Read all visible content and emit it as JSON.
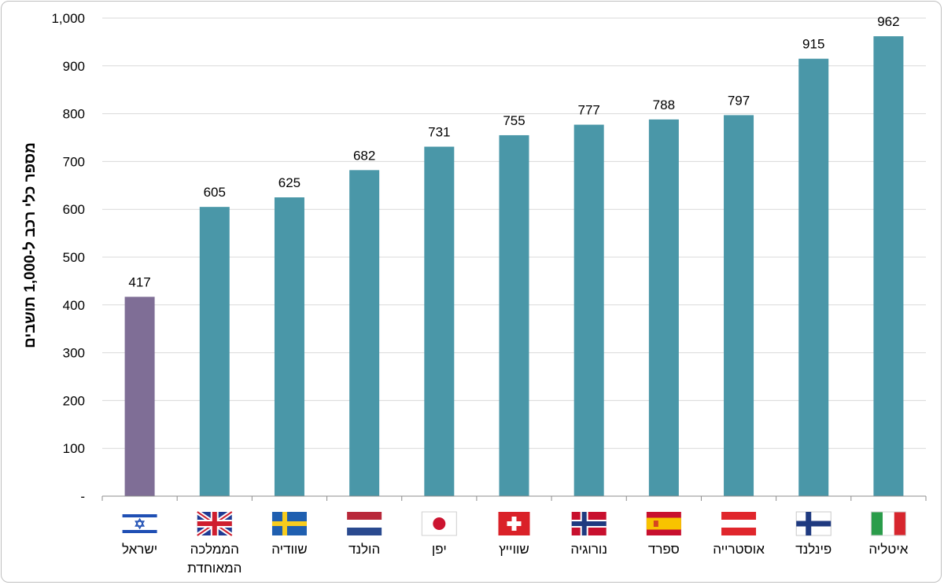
{
  "chart_data": {
    "type": "bar",
    "title": "",
    "ylabel": "מספר כלי רכב ל-1,000 תושבים",
    "xlabel": "",
    "ylim": [
      0,
      1000
    ],
    "yticks": [
      {
        "value": 0,
        "label": "-"
      },
      {
        "value": 100,
        "label": "100"
      },
      {
        "value": 200,
        "label": "200"
      },
      {
        "value": 300,
        "label": "300"
      },
      {
        "value": 400,
        "label": "400"
      },
      {
        "value": 500,
        "label": "500"
      },
      {
        "value": 600,
        "label": "600"
      },
      {
        "value": 700,
        "label": "700"
      },
      {
        "value": 800,
        "label": "800"
      },
      {
        "value": 900,
        "label": "900"
      },
      {
        "value": 1000,
        "label": "1,000"
      }
    ],
    "grid": true,
    "legend": "none",
    "categories": [
      {
        "lines": [
          "ישראל"
        ],
        "flag": "israel-flag-icon"
      },
      {
        "lines": [
          "הממלכה",
          "המאוחדת"
        ],
        "flag": "uk-flag-icon"
      },
      {
        "lines": [
          "שוודיה"
        ],
        "flag": "sweden-flag-icon"
      },
      {
        "lines": [
          "הולנד"
        ],
        "flag": "netherlands-flag-icon"
      },
      {
        "lines": [
          "יפן"
        ],
        "flag": "japan-flag-icon"
      },
      {
        "lines": [
          "שווייץ"
        ],
        "flag": "switzerland-flag-icon"
      },
      {
        "lines": [
          "נורוגיה"
        ],
        "flag": "norway-flag-icon"
      },
      {
        "lines": [
          "ספרד"
        ],
        "flag": "spain-flag-icon"
      },
      {
        "lines": [
          "אוסטרייה"
        ],
        "flag": "austria-flag-icon"
      },
      {
        "lines": [
          "פינלנד"
        ],
        "flag": "finland-flag-icon"
      },
      {
        "lines": [
          "איטליה"
        ],
        "flag": "italy-flag-icon"
      }
    ],
    "values": [
      417,
      605,
      625,
      682,
      731,
      755,
      777,
      788,
      797,
      915,
      962
    ],
    "colors": {
      "highlight": "#7f6e96",
      "default": "#4a97a8"
    }
  }
}
